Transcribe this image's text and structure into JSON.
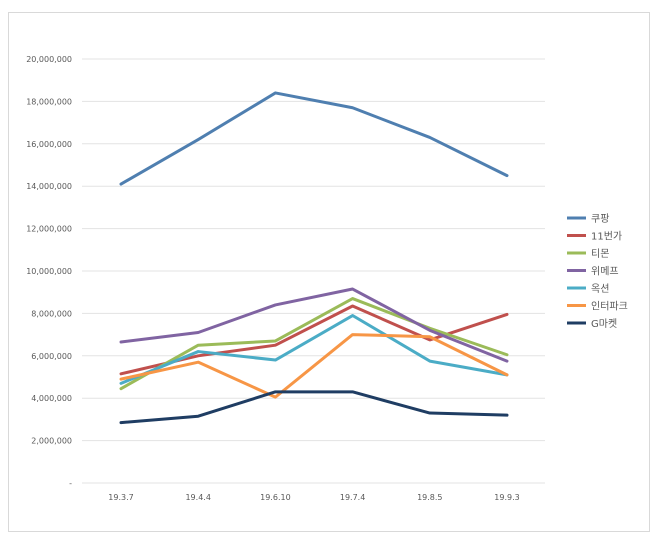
{
  "chart_data": {
    "type": "line",
    "title": "",
    "xlabel": "",
    "ylabel": "",
    "categories": [
      "19.3.7",
      "19.4.4",
      "19.6.10",
      "19.7.4",
      "19.8.5",
      "19.9.3"
    ],
    "ylim": [
      0,
      20000000
    ],
    "yticks": [
      0,
      2000000,
      4000000,
      6000000,
      8000000,
      10000000,
      12000000,
      14000000,
      16000000,
      18000000,
      20000000
    ],
    "ytick_labels": [
      "-",
      "2,000,000",
      "4,000,000",
      "6,000,000",
      "8,000,000",
      "10,000,000",
      "12,000,000",
      "14,000,000",
      "16,000,000",
      "18,000,000",
      "20,000,000"
    ],
    "grid": true,
    "legend_position": "right",
    "series": [
      {
        "name": "쿠팡",
        "color": "#4f7fb0",
        "values": [
          14100000,
          16200000,
          18400000,
          17700000,
          16300000,
          14500000
        ]
      },
      {
        "name": "11번가",
        "color": "#c0504d",
        "values": [
          5150000,
          6000000,
          6500000,
          8350000,
          6750000,
          7950000
        ]
      },
      {
        "name": "티몬",
        "color": "#9bbb59",
        "values": [
          4450000,
          6500000,
          6700000,
          8700000,
          7300000,
          6050000
        ]
      },
      {
        "name": "위메프",
        "color": "#8064a2",
        "values": [
          6650000,
          7100000,
          8400000,
          9150000,
          7200000,
          5750000
        ]
      },
      {
        "name": "옥션",
        "color": "#4bacc6",
        "values": [
          4700000,
          6200000,
          5800000,
          7900000,
          5750000,
          5100000
        ]
      },
      {
        "name": "인터파크",
        "color": "#f79646",
        "values": [
          4900000,
          5700000,
          4050000,
          7000000,
          6900000,
          5100000
        ]
      },
      {
        "name": "G마켓",
        "color": "#1f3d63",
        "values": [
          2850000,
          3150000,
          4300000,
          4300000,
          3300000,
          3200000
        ]
      }
    ]
  }
}
